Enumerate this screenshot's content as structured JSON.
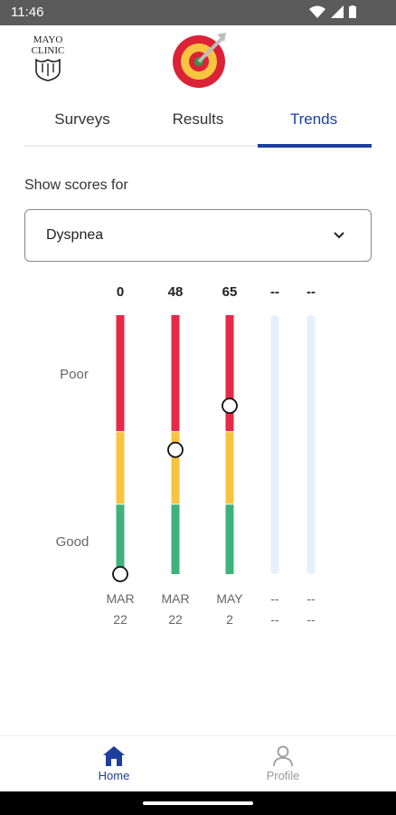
{
  "status_bar": {
    "time": "11:46",
    "icons": [
      "wifi-icon",
      "signal-icon",
      "battery-icon"
    ]
  },
  "header": {
    "logo_text_line1": "MAYO",
    "logo_text_line2": "CLINIC",
    "app_icon": "target-icon"
  },
  "tabs": [
    {
      "label": "Surveys",
      "active": false
    },
    {
      "label": "Results",
      "active": false
    },
    {
      "label": "Trends",
      "active": true
    }
  ],
  "filter": {
    "label": "Show scores for",
    "selected": "Dyspnea",
    "caret_icon": "chevron-down-icon"
  },
  "chart_data": {
    "type": "scale",
    "y_labels": {
      "top": "Poor",
      "bottom": "Good"
    },
    "ylim": [
      0,
      100
    ],
    "zones": [
      {
        "from": 0,
        "to": 27,
        "color": "#3db27a"
      },
      {
        "from": 27,
        "to": 55,
        "color": "#f8c33f"
      },
      {
        "from": 55,
        "to": 100,
        "color": "#e52946"
      }
    ],
    "empty_color": "#e6f0fd",
    "columns": [
      {
        "score": "0",
        "value": 0,
        "month": "MAR",
        "day": "22",
        "filled": true
      },
      {
        "score": "48",
        "value": 48,
        "month": "MAR",
        "day": "22",
        "filled": true
      },
      {
        "score": "65",
        "value": 65,
        "month": "MAY",
        "day": "2",
        "filled": true
      },
      {
        "score": "--",
        "value": null,
        "month": "--",
        "day": "--",
        "filled": false
      },
      {
        "score": "--",
        "value": null,
        "month": "--",
        "day": "--",
        "filled": false
      }
    ]
  },
  "bottom_nav": {
    "home": {
      "label": "Home",
      "icon": "home-icon",
      "active": true
    },
    "profile": {
      "label": "Profile",
      "icon": "person-icon",
      "active": false
    }
  }
}
